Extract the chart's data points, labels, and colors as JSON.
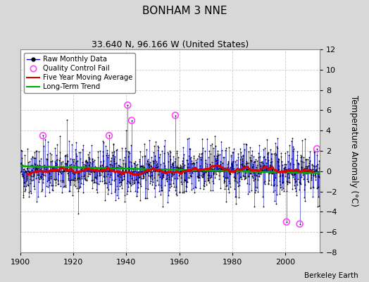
{
  "title": "BONHAM 3 NNE",
  "subtitle": "33.640 N, 96.166 W (United States)",
  "credit": "Berkeley Earth",
  "ylabel": "Temperature Anomaly (°C)",
  "xlim": [
    1900,
    2013
  ],
  "ylim": [
    -8,
    12
  ],
  "yticks": [
    -8,
    -6,
    -4,
    -2,
    0,
    2,
    4,
    6,
    8,
    10,
    12
  ],
  "xticks": [
    1900,
    1920,
    1940,
    1960,
    1980,
    2000
  ],
  "fig_bg_color": "#d8d8d8",
  "plot_bg_color": "#ffffff",
  "grid_color": "#cccccc",
  "line_color": "#0000cc",
  "marker_color": "#000000",
  "moving_avg_color": "#dd0000",
  "trend_color": "#00aa00",
  "qc_fail_color": "#ff44ff",
  "seed": 42,
  "n_years": 113,
  "start_year": 1900,
  "moving_avg_window": 60,
  "stem_lw": 0.5,
  "marker_size": 1.8,
  "trend_lw": 1.8,
  "mavg_lw": 1.8
}
